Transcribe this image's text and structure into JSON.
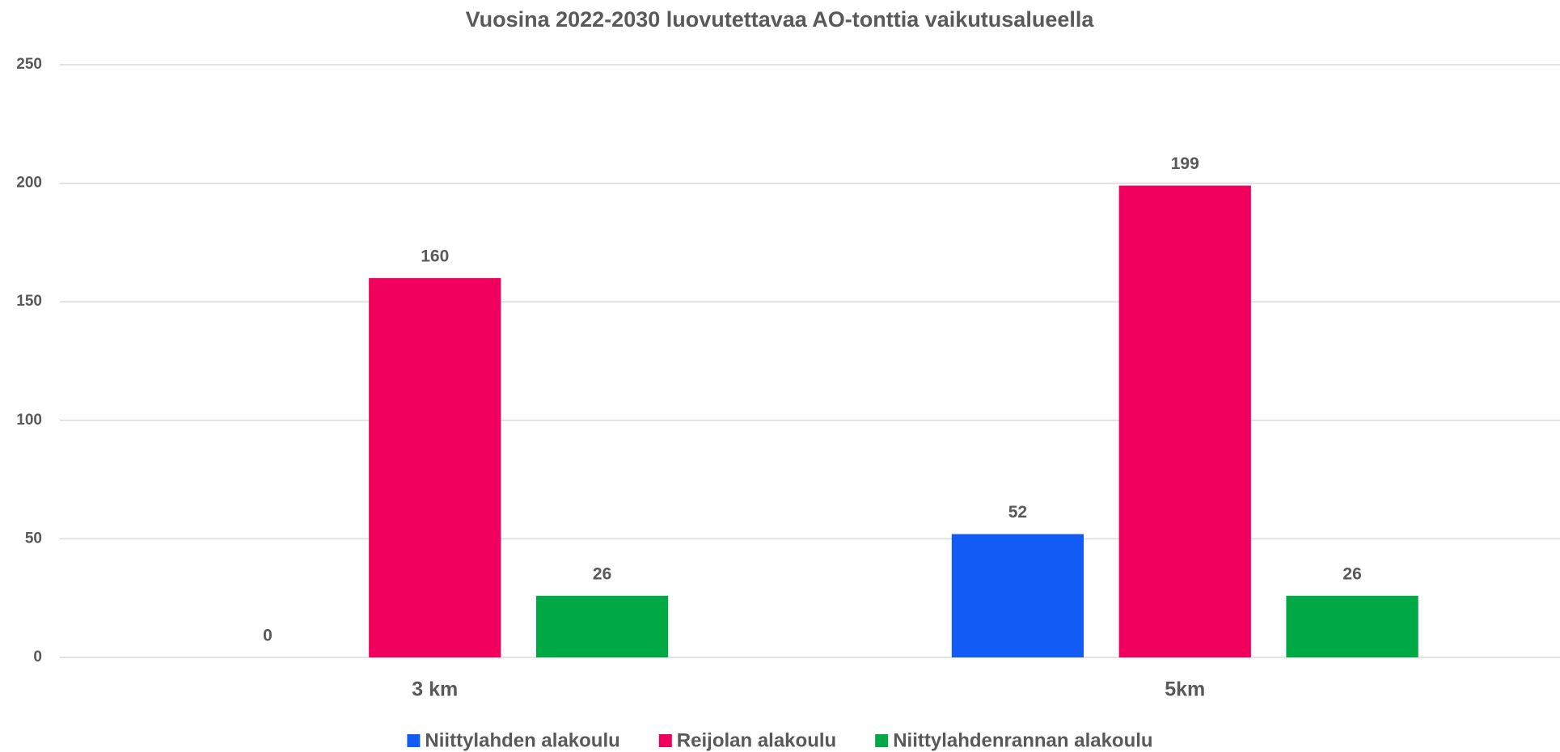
{
  "chart_data": {
    "type": "bar",
    "title": "Vuosina 2022-2030 luovutettavaa AO-tonttia vaikutusalueella",
    "categories": [
      "3 km",
      "5km"
    ],
    "series": [
      {
        "name": "Niittylahden alakoulu",
        "color": "#135bf5",
        "values": [
          0,
          52
        ]
      },
      {
        "name": "Reijolan alakoulu",
        "color": "#f0005c",
        "values": [
          160,
          199
        ]
      },
      {
        "name": "Niittylahdenrannan alakoulu",
        "color": "#00a846",
        "values": [
          26,
          26
        ]
      }
    ],
    "ylim": [
      0,
      250
    ],
    "yticks": [
      0,
      50,
      100,
      150,
      200,
      250
    ],
    "grid": true,
    "legend": "bottom"
  }
}
